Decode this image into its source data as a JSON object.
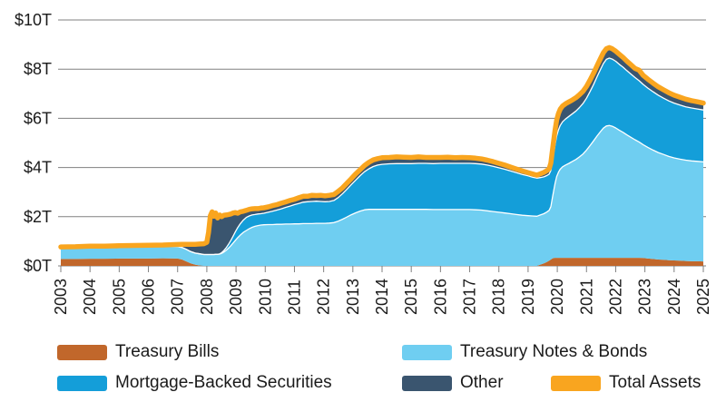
{
  "chart_data": {
    "type": "area",
    "subtype": "stacked-area-with-total-line",
    "title": "",
    "units": "trillions of US dollars",
    "xlim": [
      2003,
      2025
    ],
    "ylim": [
      0,
      10
    ],
    "grid": "horizontal",
    "legend_position": "bottom",
    "y_ticks": [
      {
        "label": "$0T",
        "value": 0
      },
      {
        "label": "$2T",
        "value": 2
      },
      {
        "label": "$4T",
        "value": 4
      },
      {
        "label": "$6T",
        "value": 6
      },
      {
        "label": "$8T",
        "value": 8
      },
      {
        "label": "$10T",
        "value": 10
      }
    ],
    "x_ticks": [
      "2003",
      "2004",
      "2005",
      "2006",
      "2007",
      "2008",
      "2009",
      "2010",
      "2011",
      "2012",
      "2013",
      "2014",
      "2015",
      "2016",
      "2017",
      "2018",
      "2019",
      "2020",
      "2021",
      "2022",
      "2023",
      "2024",
      "2025"
    ],
    "series": [
      {
        "name": "Treasury Bills",
        "color": "#C1672B",
        "type": "area"
      },
      {
        "name": "Treasury Notes & Bonds",
        "color": "#6FCEF1",
        "type": "area"
      },
      {
        "name": "Mortgage-Backed Securities",
        "color": "#149ED9",
        "type": "area"
      },
      {
        "name": "Other",
        "color": "#3A556F",
        "type": "area"
      },
      {
        "name": "Total Assets",
        "color": "#F9A51F",
        "type": "line"
      }
    ],
    "columns": [
      "year",
      "Treasury Bills",
      "Treasury Notes & Bonds",
      "Mortgage-Backed Securities",
      "Other"
    ],
    "rows": [
      [
        2003.0,
        0.28,
        0.44,
        0.0,
        0.05
      ],
      [
        2003.5,
        0.28,
        0.45,
        0.0,
        0.05
      ],
      [
        2004.0,
        0.29,
        0.45,
        0.0,
        0.06
      ],
      [
        2004.5,
        0.29,
        0.46,
        0.0,
        0.05
      ],
      [
        2005.0,
        0.3,
        0.47,
        0.0,
        0.05
      ],
      [
        2005.5,
        0.3,
        0.47,
        0.0,
        0.06
      ],
      [
        2006.0,
        0.3,
        0.48,
        0.0,
        0.06
      ],
      [
        2006.5,
        0.31,
        0.49,
        0.0,
        0.05
      ],
      [
        2007.0,
        0.3,
        0.49,
        0.0,
        0.08
      ],
      [
        2007.15,
        0.26,
        0.49,
        0.0,
        0.13
      ],
      [
        2007.3,
        0.18,
        0.49,
        0.0,
        0.21
      ],
      [
        2007.45,
        0.1,
        0.48,
        0.0,
        0.3
      ],
      [
        2007.6,
        0.05,
        0.47,
        0.0,
        0.36
      ],
      [
        2007.75,
        0.02,
        0.47,
        0.0,
        0.4
      ],
      [
        2007.9,
        0.0,
        0.46,
        0.0,
        0.44
      ],
      [
        2008.0,
        0.0,
        0.46,
        0.0,
        0.5
      ],
      [
        2008.06,
        0.0,
        0.46,
        0.0,
        0.9
      ],
      [
        2008.12,
        0.0,
        0.46,
        0.0,
        1.58
      ],
      [
        2008.18,
        0.0,
        0.46,
        0.0,
        1.74
      ],
      [
        2008.24,
        0.0,
        0.46,
        0.0,
        1.56
      ],
      [
        2008.3,
        0.0,
        0.47,
        0.0,
        1.68
      ],
      [
        2008.37,
        0.0,
        0.47,
        0.0,
        1.48
      ],
      [
        2008.44,
        0.0,
        0.48,
        0.01,
        1.58
      ],
      [
        2008.51,
        0.0,
        0.51,
        0.03,
        1.46
      ],
      [
        2008.58,
        0.0,
        0.56,
        0.06,
        1.44
      ],
      [
        2008.66,
        0.0,
        0.63,
        0.1,
        1.34
      ],
      [
        2008.74,
        0.0,
        0.72,
        0.15,
        1.22
      ],
      [
        2008.82,
        0.0,
        0.82,
        0.21,
        1.08
      ],
      [
        2008.9,
        0.0,
        0.93,
        0.28,
        0.94
      ],
      [
        2008.98,
        0.0,
        1.04,
        0.35,
        0.78
      ],
      [
        2009.06,
        0.0,
        1.15,
        0.41,
        0.58
      ],
      [
        2009.15,
        0.0,
        1.26,
        0.46,
        0.48
      ],
      [
        2009.25,
        0.0,
        1.36,
        0.5,
        0.36
      ],
      [
        2009.35,
        0.0,
        1.44,
        0.53,
        0.29
      ],
      [
        2009.45,
        0.0,
        1.51,
        0.52,
        0.27
      ],
      [
        2009.55,
        0.0,
        1.57,
        0.5,
        0.25
      ],
      [
        2009.65,
        0.0,
        1.61,
        0.48,
        0.24
      ],
      [
        2009.75,
        0.0,
        1.64,
        0.47,
        0.22
      ],
      [
        2009.85,
        0.0,
        1.66,
        0.46,
        0.23
      ],
      [
        2009.95,
        0.0,
        1.67,
        0.47,
        0.22
      ],
      [
        2010.1,
        0.0,
        1.68,
        0.5,
        0.22
      ],
      [
        2010.25,
        0.0,
        1.68,
        0.54,
        0.23
      ],
      [
        2010.4,
        0.0,
        1.69,
        0.58,
        0.22
      ],
      [
        2010.55,
        0.0,
        1.69,
        0.63,
        0.23
      ],
      [
        2010.7,
        0.0,
        1.7,
        0.68,
        0.22
      ],
      [
        2010.85,
        0.0,
        1.7,
        0.73,
        0.23
      ],
      [
        2011.0,
        0.0,
        1.71,
        0.78,
        0.22
      ],
      [
        2011.15,
        0.0,
        1.71,
        0.83,
        0.23
      ],
      [
        2011.3,
        0.0,
        1.72,
        0.87,
        0.24
      ],
      [
        2011.45,
        0.0,
        1.72,
        0.89,
        0.22
      ],
      [
        2011.6,
        0.0,
        1.72,
        0.9,
        0.25
      ],
      [
        2011.75,
        0.0,
        1.73,
        0.9,
        0.23
      ],
      [
        2011.9,
        0.0,
        1.73,
        0.89,
        0.25
      ],
      [
        2012.05,
        0.0,
        1.73,
        0.88,
        0.24
      ],
      [
        2012.2,
        0.0,
        1.74,
        0.88,
        0.25
      ],
      [
        2012.35,
        0.0,
        1.76,
        0.9,
        0.24
      ],
      [
        2012.5,
        0.0,
        1.82,
        0.96,
        0.25
      ],
      [
        2012.65,
        0.0,
        1.9,
        1.04,
        0.24
      ],
      [
        2012.8,
        0.0,
        1.99,
        1.13,
        0.25
      ],
      [
        2012.95,
        0.0,
        2.08,
        1.23,
        0.24
      ],
      [
        2013.1,
        0.0,
        2.16,
        1.33,
        0.25
      ],
      [
        2013.25,
        0.0,
        2.23,
        1.44,
        0.24
      ],
      [
        2013.4,
        0.0,
        2.28,
        1.55,
        0.25
      ],
      [
        2013.55,
        0.0,
        2.3,
        1.65,
        0.26
      ],
      [
        2013.7,
        0.0,
        2.3,
        1.74,
        0.27
      ],
      [
        2013.85,
        0.0,
        2.3,
        1.8,
        0.26
      ],
      [
        2014.0,
        0.0,
        2.3,
        1.83,
        0.27
      ],
      [
        2014.25,
        0.0,
        2.3,
        1.85,
        0.26
      ],
      [
        2014.5,
        0.0,
        2.3,
        1.86,
        0.27
      ],
      [
        2014.75,
        0.0,
        2.3,
        1.86,
        0.26
      ],
      [
        2015.0,
        0.0,
        2.3,
        1.86,
        0.25
      ],
      [
        2015.25,
        0.0,
        2.3,
        1.87,
        0.26
      ],
      [
        2015.5,
        0.0,
        2.3,
        1.87,
        0.24
      ],
      [
        2015.75,
        0.0,
        2.29,
        1.87,
        0.25
      ],
      [
        2016.0,
        0.0,
        2.29,
        1.88,
        0.24
      ],
      [
        2016.25,
        0.0,
        2.29,
        1.88,
        0.25
      ],
      [
        2016.5,
        0.0,
        2.29,
        1.88,
        0.23
      ],
      [
        2016.75,
        0.0,
        2.29,
        1.88,
        0.24
      ],
      [
        2017.0,
        0.0,
        2.29,
        1.88,
        0.23
      ],
      [
        2017.2,
        0.0,
        2.28,
        1.88,
        0.22
      ],
      [
        2017.4,
        0.0,
        2.27,
        1.87,
        0.21
      ],
      [
        2017.6,
        0.0,
        2.24,
        1.86,
        0.2
      ],
      [
        2017.8,
        0.0,
        2.21,
        1.84,
        0.19
      ],
      [
        2018.0,
        0.0,
        2.18,
        1.81,
        0.18
      ],
      [
        2018.2,
        0.0,
        2.15,
        1.78,
        0.17
      ],
      [
        2018.4,
        0.0,
        2.12,
        1.74,
        0.16
      ],
      [
        2018.6,
        0.0,
        2.09,
        1.7,
        0.15
      ],
      [
        2018.8,
        0.0,
        2.06,
        1.66,
        0.14
      ],
      [
        2019.0,
        0.0,
        2.04,
        1.62,
        0.13
      ],
      [
        2019.15,
        0.0,
        2.03,
        1.58,
        0.13
      ],
      [
        2019.3,
        0.0,
        2.02,
        1.55,
        0.12
      ],
      [
        2019.42,
        0.05,
        2.02,
        1.52,
        0.15
      ],
      [
        2019.54,
        0.1,
        2.02,
        1.5,
        0.18
      ],
      [
        2019.64,
        0.16,
        2.03,
        1.48,
        0.2
      ],
      [
        2019.72,
        0.21,
        2.05,
        1.47,
        0.22
      ],
      [
        2019.78,
        0.26,
        2.15,
        1.47,
        0.3
      ],
      [
        2019.83,
        0.3,
        2.45,
        1.49,
        0.42
      ],
      [
        2019.88,
        0.32,
        2.75,
        1.53,
        0.52
      ],
      [
        2019.93,
        0.33,
        3.05,
        1.58,
        0.6
      ],
      [
        2019.98,
        0.33,
        3.3,
        1.65,
        0.65
      ],
      [
        2020.04,
        0.33,
        3.48,
        1.72,
        0.67
      ],
      [
        2020.1,
        0.33,
        3.6,
        1.78,
        0.66
      ],
      [
        2020.18,
        0.33,
        3.7,
        1.83,
        0.64
      ],
      [
        2020.28,
        0.33,
        3.77,
        1.87,
        0.62
      ],
      [
        2020.4,
        0.33,
        3.84,
        1.91,
        0.59
      ],
      [
        2020.52,
        0.33,
        3.92,
        1.94,
        0.56
      ],
      [
        2020.64,
        0.33,
        4.0,
        1.97,
        0.54
      ],
      [
        2020.76,
        0.33,
        4.1,
        2.01,
        0.52
      ],
      [
        2020.88,
        0.33,
        4.22,
        2.05,
        0.5
      ],
      [
        2021.0,
        0.33,
        4.38,
        2.11,
        0.48
      ],
      [
        2021.12,
        0.33,
        4.56,
        2.19,
        0.47
      ],
      [
        2021.24,
        0.33,
        4.75,
        2.29,
        0.46
      ],
      [
        2021.36,
        0.33,
        4.95,
        2.41,
        0.45
      ],
      [
        2021.48,
        0.33,
        5.13,
        2.53,
        0.44
      ],
      [
        2021.58,
        0.33,
        5.27,
        2.63,
        0.44
      ],
      [
        2021.68,
        0.33,
        5.36,
        2.71,
        0.43
      ],
      [
        2021.78,
        0.33,
        5.38,
        2.74,
        0.43
      ],
      [
        2021.88,
        0.33,
        5.35,
        2.73,
        0.42
      ],
      [
        2022.0,
        0.33,
        5.28,
        2.71,
        0.41
      ],
      [
        2022.12,
        0.33,
        5.19,
        2.68,
        0.41
      ],
      [
        2022.25,
        0.33,
        5.1,
        2.65,
        0.4
      ],
      [
        2022.38,
        0.33,
        5.0,
        2.61,
        0.39
      ],
      [
        2022.52,
        0.33,
        4.9,
        2.57,
        0.38
      ],
      [
        2022.66,
        0.33,
        4.8,
        2.53,
        0.37
      ],
      [
        2022.8,
        0.33,
        4.71,
        2.49,
        0.43
      ],
      [
        2022.94,
        0.32,
        4.61,
        2.45,
        0.37
      ],
      [
        2023.1,
        0.3,
        4.52,
        2.41,
        0.36
      ],
      [
        2023.28,
        0.28,
        4.43,
        2.37,
        0.35
      ],
      [
        2023.46,
        0.26,
        4.35,
        2.33,
        0.34
      ],
      [
        2023.64,
        0.25,
        4.28,
        2.29,
        0.34
      ],
      [
        2023.82,
        0.23,
        4.22,
        2.26,
        0.33
      ],
      [
        2024.0,
        0.22,
        4.17,
        2.23,
        0.32
      ],
      [
        2024.2,
        0.21,
        4.13,
        2.2,
        0.32
      ],
      [
        2024.4,
        0.2,
        4.1,
        2.17,
        0.31
      ],
      [
        2024.6,
        0.19,
        4.08,
        2.15,
        0.3
      ],
      [
        2024.8,
        0.19,
        4.06,
        2.13,
        0.29
      ],
      [
        2025.0,
        0.18,
        4.05,
        2.11,
        0.28
      ]
    ],
    "style": {
      "grid_color": "#808080",
      "text_color": "#1a1a1a",
      "separator_color": "#ffffff",
      "background": "#ffffff",
      "total_line_width": 5.5
    }
  }
}
